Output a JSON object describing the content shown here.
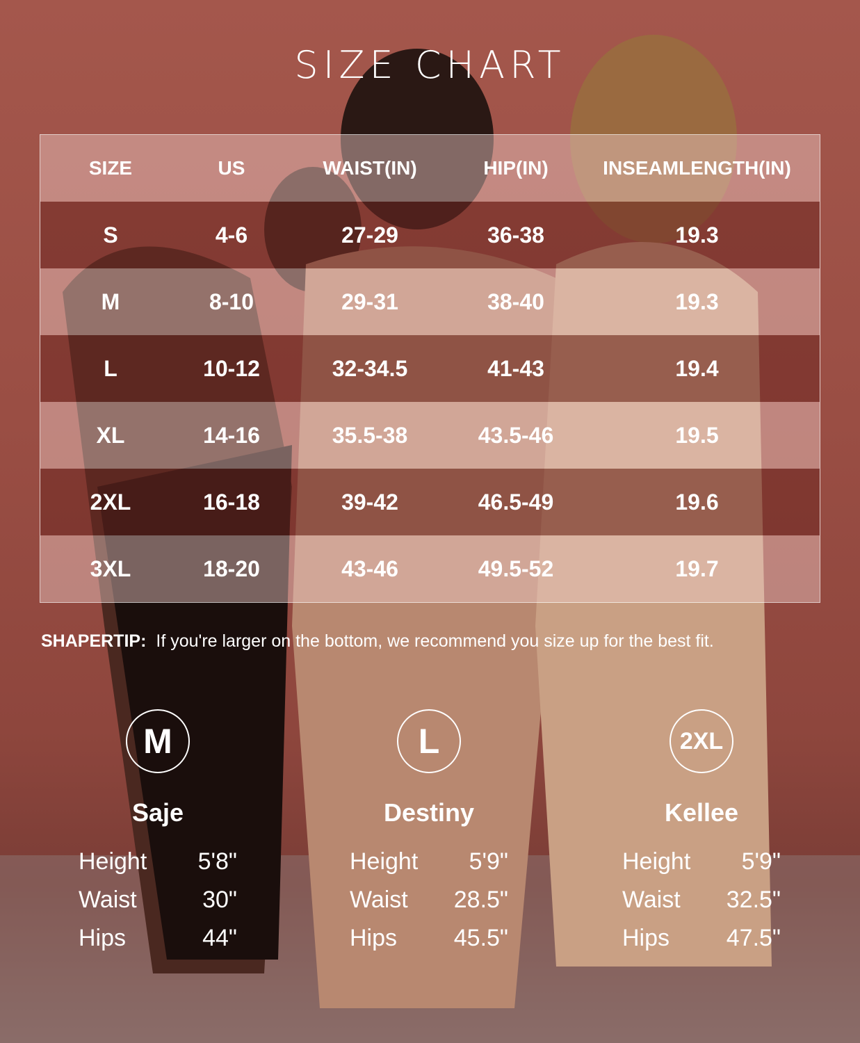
{
  "title": "SIZE CHART",
  "table": {
    "headers": [
      "SIZE",
      "US",
      "WAIST(IN)",
      "HIP(IN)",
      "INSEAMLENGTH(IN)"
    ],
    "rows": [
      [
        "S",
        "4-6",
        "27-29",
        "36-38",
        "19.3"
      ],
      [
        "M",
        "8-10",
        "29-31",
        "38-40",
        "19.3"
      ],
      [
        "L",
        "10-12",
        "32-34.5",
        "41-43",
        "19.4"
      ],
      [
        "XL",
        "14-16",
        "35.5-38",
        "43.5-46",
        "19.5"
      ],
      [
        "2XL",
        "16-18",
        "39-42",
        "46.5-49",
        "19.6"
      ],
      [
        "3XL",
        "18-20",
        "43-46",
        "49.5-52",
        "19.7"
      ]
    ]
  },
  "tip": {
    "label": "SHAPERTIP:",
    "text": "If you're larger on the bottom, we recommend you size up for the best fit."
  },
  "models": [
    {
      "size": "M",
      "name": "Saje",
      "stats": [
        {
          "label": "Height",
          "value": "5'8\""
        },
        {
          "label": "Waist",
          "value": "30\""
        },
        {
          "label": "Hips",
          "value": "44\""
        }
      ]
    },
    {
      "size": "L",
      "name": "Destiny",
      "stats": [
        {
          "label": "Height",
          "value": "5'9\""
        },
        {
          "label": "Waist",
          "value": "28.5\""
        },
        {
          "label": "Hips",
          "value": "45.5\""
        }
      ]
    },
    {
      "size": "2XL",
      "name": "Kellee",
      "stats": [
        {
          "label": "Height",
          "value": "5'9\""
        },
        {
          "label": "Waist",
          "value": "32.5\""
        },
        {
          "label": "Hips",
          "value": "47.5\""
        }
      ]
    }
  ],
  "colors": {
    "background": "#9a4e44",
    "text": "#ffffff"
  }
}
